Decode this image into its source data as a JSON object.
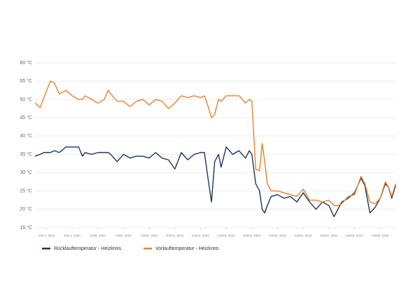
{
  "chart_data": {
    "type": "line",
    "x": [
      1.1,
      1.5,
      1.8,
      2.3,
      2.6,
      3.0,
      3.5,
      4.0,
      4.5,
      4.8,
      5.0,
      5.5,
      6.0,
      6.5,
      6.8,
      7.0,
      7.5,
      8.0,
      8.5,
      9.0,
      9.5,
      10.0,
      10.5,
      11.0,
      11.5,
      12.0,
      12.5,
      13.0,
      13.5,
      14.0,
      14.3,
      14.6,
      14.85,
      15.1,
      15.4,
      15.6,
      16.0,
      16.5,
      17.0,
      17.5,
      17.8,
      18.0,
      18.3,
      18.6,
      18.8,
      19.0,
      19.2,
      19.5,
      20.0,
      20.5,
      21.0,
      21.5,
      22.0,
      22.5,
      23.0,
      23.5,
      24.0,
      24.4,
      24.7,
      25.0,
      25.5,
      26.0,
      26.5,
      26.8,
      27.2,
      27.6,
      28.0,
      28.4,
      28.65,
      28.9,
      29.2
    ],
    "series": [
      {
        "name": "Rücklauftemperatur - Heizkreis",
        "color": "#1c3557",
        "values": [
          34.5,
          35.0,
          35.5,
          35.5,
          36.0,
          35.5,
          37.0,
          37.0,
          37.0,
          34.5,
          35.5,
          35.0,
          35.5,
          35.5,
          35.5,
          35.0,
          33.0,
          35.0,
          34.0,
          34.5,
          34.5,
          34.0,
          35.5,
          34.0,
          33.5,
          31.0,
          35.5,
          33.5,
          35.0,
          35.5,
          35.5,
          28.0,
          22.0,
          33.0,
          35.0,
          31.5,
          37.0,
          35.0,
          36.0,
          34.0,
          36.0,
          35.0,
          27.0,
          25.0,
          20.0,
          19.0,
          21.0,
          23.5,
          24.0,
          23.0,
          23.5,
          22.0,
          24.5,
          22.0,
          20.0,
          22.0,
          21.0,
          18.0,
          20.0,
          22.0,
          23.0,
          24.5,
          28.5,
          26.5,
          19.0,
          20.5,
          23.0,
          27.0,
          26.0,
          23.0,
          26.5
        ]
      },
      {
        "name": "Vorlauftemperatur - Heizkreis",
        "color": "#e8812c",
        "values": [
          49.0,
          47.8,
          50.5,
          55.0,
          54.5,
          51.5,
          52.5,
          51.0,
          50.0,
          50.0,
          51.0,
          50.0,
          49.0,
          50.0,
          52.5,
          51.5,
          49.5,
          49.5,
          48.0,
          49.5,
          50.0,
          48.5,
          50.0,
          49.5,
          47.5,
          49.0,
          51.0,
          50.5,
          51.0,
          50.5,
          51.0,
          48.0,
          45.0,
          46.0,
          50.0,
          49.5,
          51.0,
          51.0,
          51.0,
          49.0,
          50.0,
          49.5,
          31.0,
          30.5,
          38.0,
          33.0,
          27.0,
          25.0,
          25.0,
          24.5,
          24.0,
          23.5,
          25.5,
          22.5,
          22.5,
          22.0,
          22.5,
          21.0,
          21.0,
          21.5,
          23.5,
          24.0,
          29.0,
          27.0,
          22.0,
          21.5,
          23.0,
          27.5,
          26.0,
          23.5,
          27.0
        ]
      }
    ],
    "xlim": [
      1.1,
      29.3
    ],
    "xticks": [
      {
        "value": 2,
        "label": "KW 2, 2024"
      },
      {
        "value": 4,
        "label": "KW 4, 2024"
      },
      {
        "value": 6,
        "label": "KW6, 2024"
      },
      {
        "value": 8,
        "label": "KW8, 2024"
      },
      {
        "value": 10,
        "label": "KW10, 2024"
      },
      {
        "value": 12,
        "label": "KW12, 2024"
      },
      {
        "value": 14,
        "label": "KW14, 2024"
      },
      {
        "value": 16,
        "label": "KW16, 2024"
      },
      {
        "value": 18,
        "label": "KW18, 2024"
      },
      {
        "value": 20,
        "label": "KW20, 2024"
      },
      {
        "value": 22,
        "label": "KW22, 2024"
      },
      {
        "value": 24,
        "label": "KW24, 2024"
      },
      {
        "value": 26,
        "label": "KW26, 2024"
      },
      {
        "value": 28,
        "label": "KW28, 2024"
      }
    ],
    "ylim": [
      15,
      60
    ],
    "yticks": [
      {
        "value": 15,
        "label": "15 °C"
      },
      {
        "value": 20,
        "label": "20 °C"
      },
      {
        "value": 25,
        "label": "25 °C"
      },
      {
        "value": 30,
        "label": "30 °C"
      },
      {
        "value": 35,
        "label": "35 °C"
      },
      {
        "value": 40,
        "label": "40 °C"
      },
      {
        "value": 45,
        "label": "45 °C"
      },
      {
        "value": 50,
        "label": "50 °C"
      },
      {
        "value": 55,
        "label": "55 °C"
      },
      {
        "value": 60,
        "label": "60 °C"
      }
    ],
    "grid": true
  }
}
